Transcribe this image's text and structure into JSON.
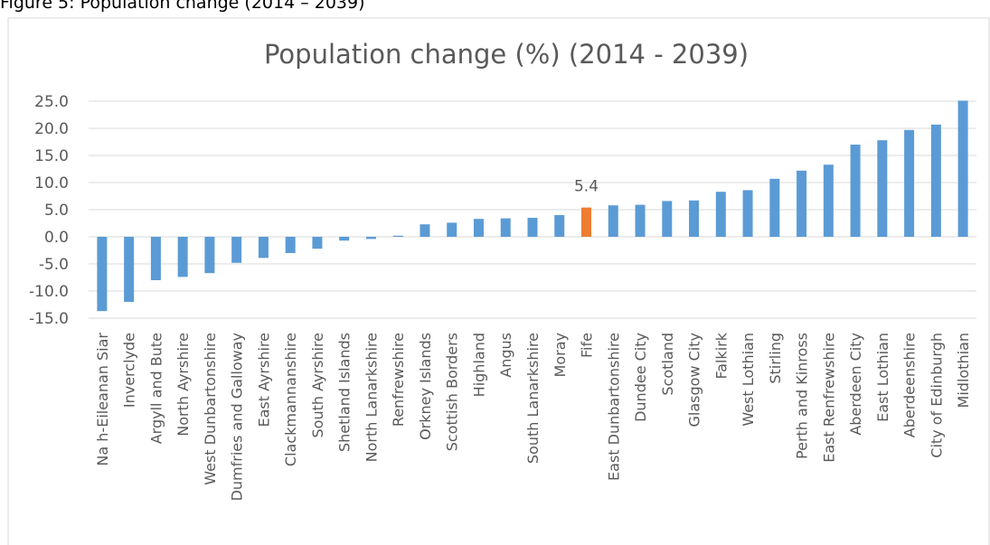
{
  "caption": "Figure 5: Population change (2014 – 2039)",
  "chart_data": {
    "type": "bar",
    "title": "Population change (%) (2014 - 2039)",
    "categories": [
      "Na h-Eileanan Siar",
      "Inverclyde",
      "Argyll and Bute",
      "North Ayrshire",
      "West Dunbartonshire",
      "Dumfries and Galloway",
      "East Ayrshire",
      "Clackmannanshire",
      "South Ayrshire",
      "Shetland Islands",
      "North Lanarkshire",
      "Renfrewshire",
      "Orkney Islands",
      "Scottish Borders",
      "Highland",
      "Angus",
      "South Lanarkshire",
      "Moray",
      "Fife",
      "East Dunbartonshire",
      "Dundee City",
      "Scotland",
      "Glasgow City",
      "Falkirk",
      "West Lothian",
      "Stirling",
      "Perth and Kinross",
      "East Renfrewshire",
      "Aberdeen City",
      "East Lothian",
      "Aberdeenshire",
      "City of Edinburgh",
      "Midlothian"
    ],
    "values": [
      -13.7,
      -12.0,
      -8.0,
      -7.4,
      -6.7,
      -4.8,
      -3.9,
      -3.0,
      -2.2,
      -0.7,
      -0.4,
      0.2,
      2.3,
      2.6,
      3.3,
      3.4,
      3.5,
      4.0,
      5.4,
      5.8,
      5.9,
      6.6,
      6.7,
      8.3,
      8.6,
      10.7,
      12.2,
      13.3,
      17.0,
      17.8,
      19.7,
      20.7,
      25.1
    ],
    "value_labels": [
      null,
      null,
      null,
      null,
      null,
      null,
      null,
      null,
      null,
      null,
      null,
      null,
      null,
      null,
      null,
      null,
      null,
      null,
      "5.4",
      null,
      null,
      null,
      null,
      null,
      null,
      null,
      null,
      null,
      null,
      null,
      null,
      null,
      null
    ],
    "colors": [
      "#5b9bd5",
      "#5b9bd5",
      "#5b9bd5",
      "#5b9bd5",
      "#5b9bd5",
      "#5b9bd5",
      "#5b9bd5",
      "#5b9bd5",
      "#5b9bd5",
      "#5b9bd5",
      "#5b9bd5",
      "#5b9bd5",
      "#5b9bd5",
      "#5b9bd5",
      "#5b9bd5",
      "#5b9bd5",
      "#5b9bd5",
      "#5b9bd5",
      "#ed7d31",
      "#5b9bd5",
      "#5b9bd5",
      "#5b9bd5",
      "#5b9bd5",
      "#5b9bd5",
      "#5b9bd5",
      "#5b9bd5",
      "#5b9bd5",
      "#5b9bd5",
      "#5b9bd5",
      "#5b9bd5",
      "#5b9bd5",
      "#5b9bd5",
      "#5b9bd5"
    ],
    "ylim": [
      -15,
      25
    ],
    "yticks": [
      {
        "value": 25,
        "label": "25.0"
      },
      {
        "value": 20,
        "label": "20.0"
      },
      {
        "value": 15,
        "label": "15.0"
      },
      {
        "value": 10,
        "label": "10.0"
      },
      {
        "value": 5,
        "label": "5.0"
      },
      {
        "value": 0,
        "label": "0.0"
      },
      {
        "value": -5,
        "label": "-5.0"
      },
      {
        "value": -10,
        "label": "-10.0"
      },
      {
        "value": -15,
        "label": "-15.0"
      }
    ],
    "grid": true
  }
}
